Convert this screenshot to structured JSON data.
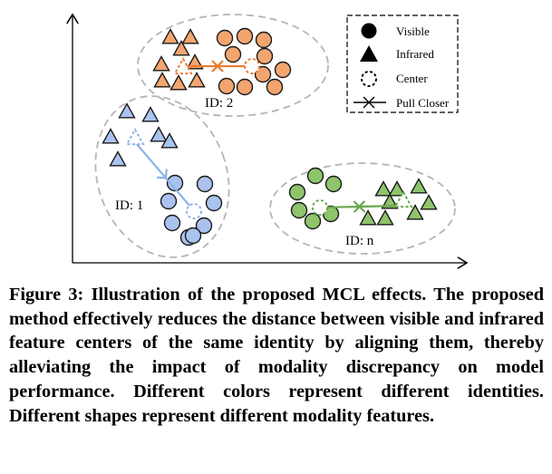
{
  "figure": {
    "legend": {
      "visible": "Visible",
      "infrared": "Infrared",
      "center": "Center",
      "pull_closer": "Pull Closer"
    },
    "clusters": [
      {
        "id_label": "ID: 2",
        "color_fill": "#f3a570",
        "color_stroke": "#c45a1b",
        "arrow_color": "#ea7d33"
      },
      {
        "id_label": "ID: 1",
        "color_fill": "#a9c3ee",
        "color_stroke": "#2a4f8f",
        "arrow_color": "#8fb2ea"
      },
      {
        "id_label": "ID: n",
        "color_fill": "#8ec46b",
        "color_stroke": "#3e6e22",
        "arrow_color": "#6aa84f"
      }
    ]
  },
  "caption": {
    "label": "Figure 3:",
    "text": "Illustration of the proposed MCL effects. The proposed method effectively reduces the distance between visible and infrared feature centers of the same identity by aligning them, thereby alleviating the impact of modality discrepancy on model performance. Different colors represent different identities. Different shapes represent different modality features."
  }
}
